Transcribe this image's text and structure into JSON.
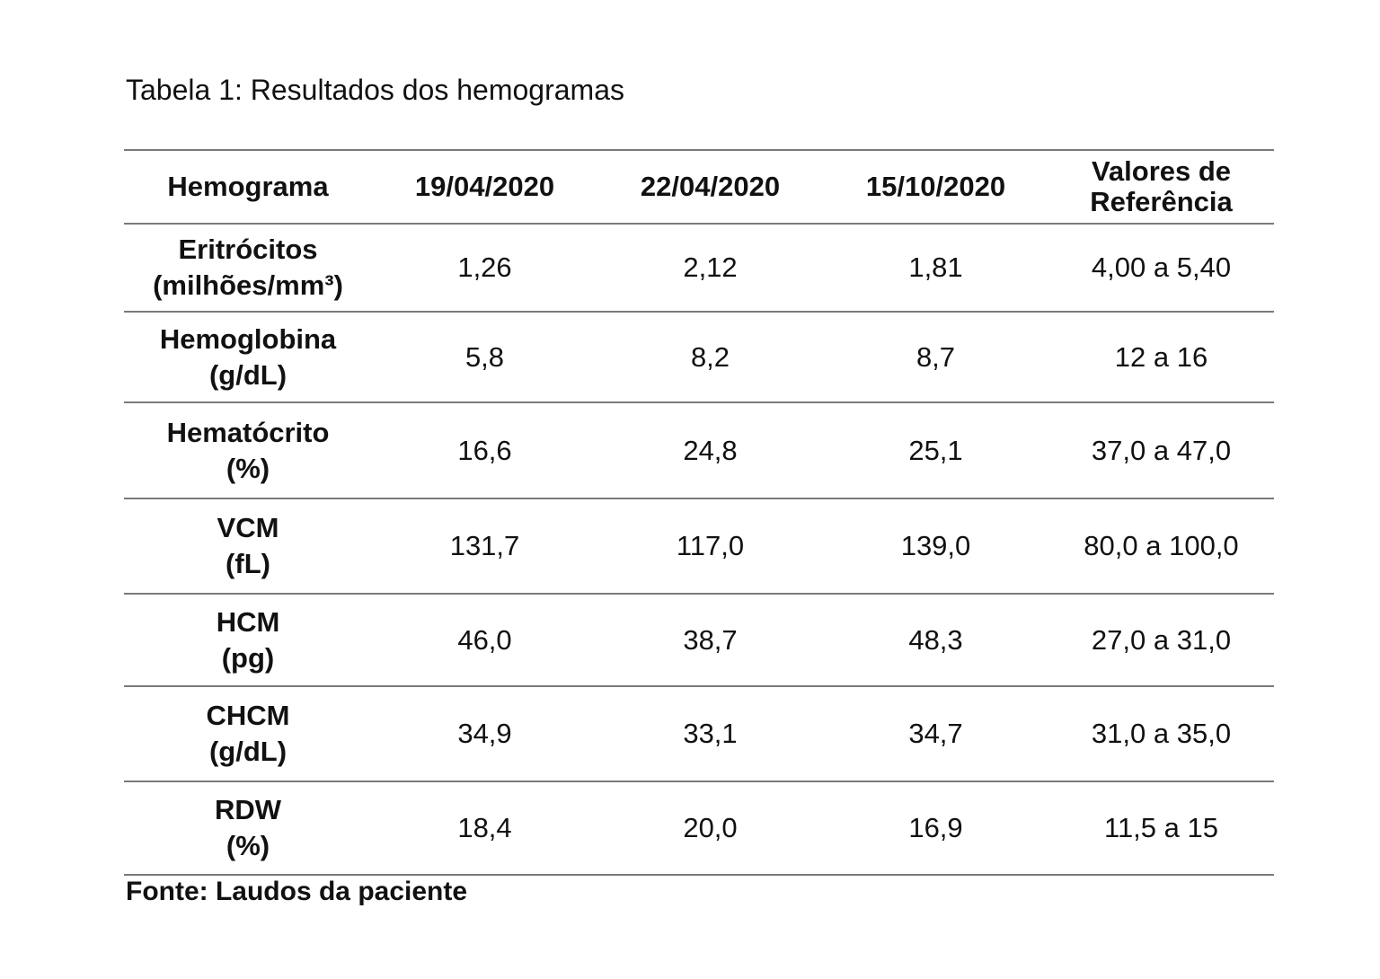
{
  "title": "Tabela 1: Resultados dos hemogramas",
  "headers": [
    "Hemograma",
    "19/04/2020",
    "22/04/2020",
    "15/10/2020",
    "Valores de",
    "Referência"
  ],
  "rows": [
    {
      "name": "Eritrócitos",
      "unit": "(milhões/mm³)",
      "values": [
        "1,26",
        "2,12",
        "1,81",
        "4,00 a 5,40"
      ]
    },
    {
      "name": "Hemoglobina",
      "unit": "(g/dL)",
      "values": [
        "5,8",
        "8,2",
        "8,7",
        "12 a 16"
      ]
    },
    {
      "name": "Hematócrito",
      "unit": "(%)",
      "values": [
        "16,6",
        "24,8",
        "25,1",
        "37,0 a 47,0"
      ]
    },
    {
      "name": "VCM",
      "unit": "(fL)",
      "values": [
        "131,7",
        "117,0",
        "139,0",
        "80,0 a 100,0"
      ]
    },
    {
      "name": "HCM",
      "unit": "(pg)",
      "values": [
        "46,0",
        "38,7",
        "48,3",
        "27,0 a 31,0"
      ]
    },
    {
      "name": "CHCM",
      "unit": "(g/dL)",
      "values": [
        "34,9",
        "33,1",
        "34,7",
        "31,0 a 35,0"
      ]
    },
    {
      "name": "RDW",
      "unit": "(%)",
      "values": [
        "18,4",
        "20,0",
        "16,9",
        "11,5 a 15"
      ]
    }
  ],
  "source": "Fonte: Laudos da paciente"
}
